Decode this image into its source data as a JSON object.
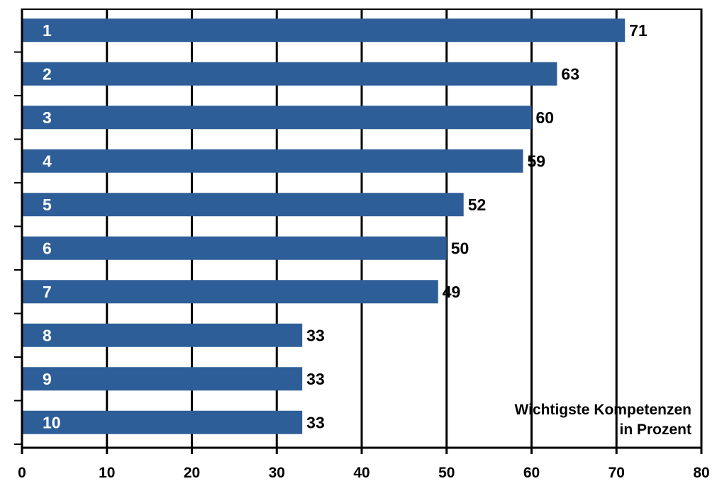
{
  "chart_data": {
    "type": "bar",
    "orientation": "horizontal",
    "categories": [
      "1",
      "2",
      "3",
      "4",
      "5",
      "6",
      "7",
      "8",
      "9",
      "10"
    ],
    "values": [
      71,
      63,
      60,
      59,
      52,
      50,
      49,
      33,
      33,
      33
    ],
    "xlim": [
      0,
      80
    ],
    "x_ticks": [
      0,
      10,
      20,
      30,
      40,
      50,
      60,
      70,
      80
    ],
    "grid": "vertical lines at 10-unit steps",
    "bar_color": "#2E5E98",
    "annotation": [
      "Wichtigste Kompetenzen",
      "in Prozent"
    ]
  }
}
